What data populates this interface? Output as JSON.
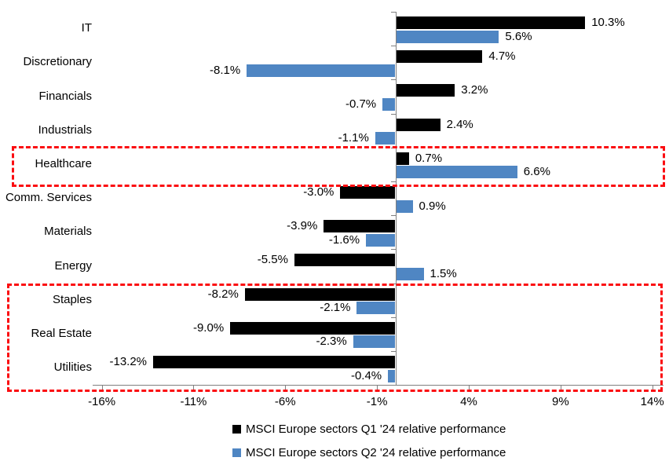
{
  "chart_data": {
    "type": "bar",
    "orientation": "horizontal",
    "title": "",
    "categories": [
      "IT",
      "Discretionary",
      "Financials",
      "Industrials",
      "Healthcare",
      "Comm. Services",
      "Materials",
      "Energy",
      "Staples",
      "Real Estate",
      "Utilities"
    ],
    "series": [
      {
        "name": "MSCI Europe sectors Q1 '24 relative performance",
        "color": "#000000",
        "values": [
          10.3,
          4.7,
          3.2,
          2.4,
          0.7,
          -3.0,
          -3.9,
          -5.5,
          -8.2,
          -9.0,
          -13.2
        ]
      },
      {
        "name": "MSCI Europe sectors Q2 '24 relative performance",
        "color": "#4F86C3",
        "values": [
          5.6,
          -8.1,
          -0.7,
          -1.1,
          6.6,
          0.9,
          -1.6,
          1.5,
          -2.1,
          -2.3,
          -0.4
        ]
      }
    ],
    "value_label_format": "one_decimal_percent",
    "x_tick_labels": [
      "-16%",
      "-11%",
      "-6%",
      "-1%",
      "4%",
      "9%",
      "14%"
    ],
    "x_tick_values": [
      -16,
      -11,
      -6,
      -1,
      4,
      9,
      14
    ],
    "xlim": [
      -16.5,
      14.6
    ],
    "grid": false,
    "legend_position": "bottom",
    "axis_color": "#808080",
    "annotations": [
      {
        "type": "highlight-box",
        "color": "#FB0D11",
        "style": "dashed",
        "rows": [
          "Healthcare"
        ]
      },
      {
        "type": "highlight-box",
        "color": "#FB0D11",
        "style": "dashed",
        "rows": [
          "Staples",
          "Real Estate",
          "Utilities"
        ]
      }
    ]
  }
}
